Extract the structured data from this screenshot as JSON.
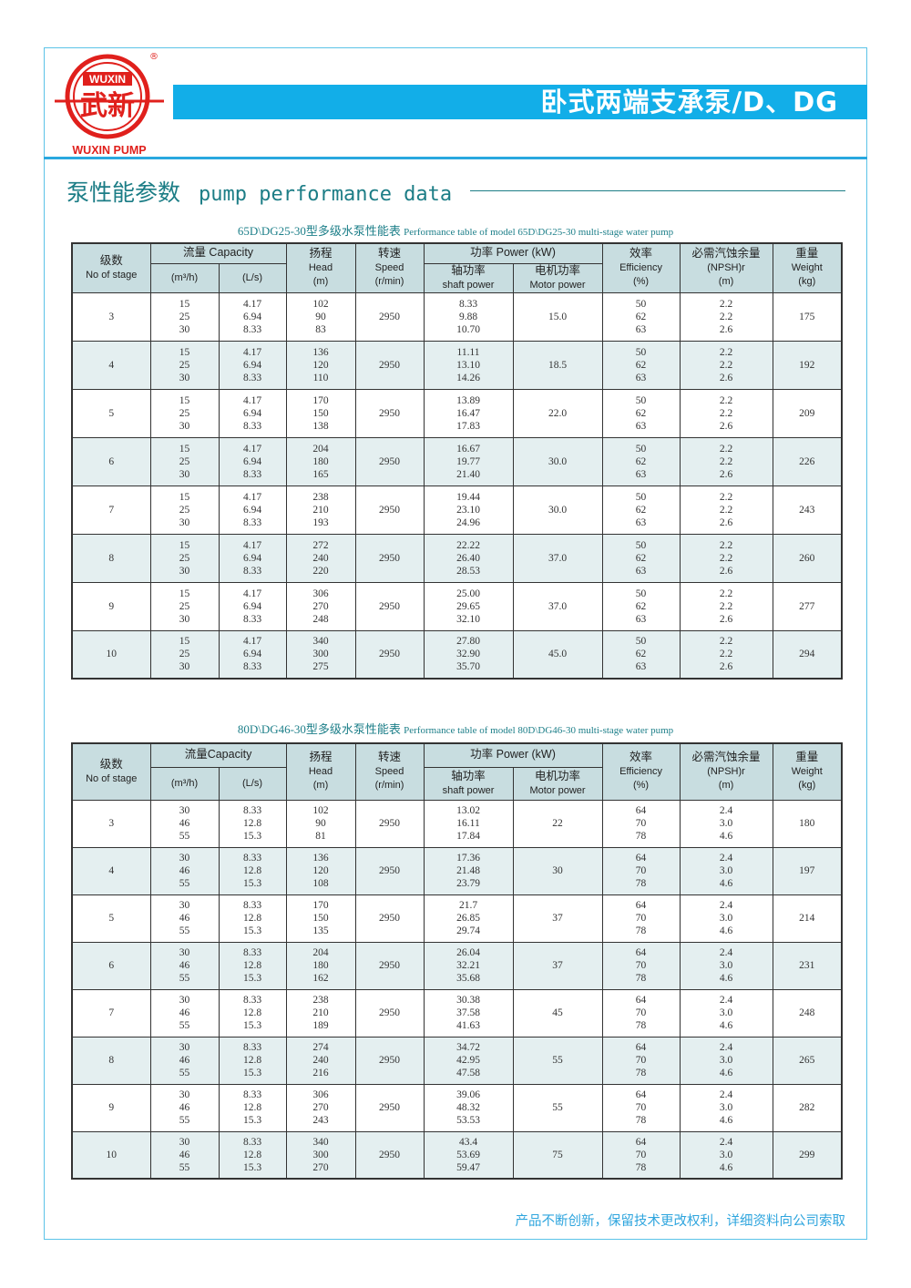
{
  "brand": {
    "logo_top": "WUXIN",
    "logo_chinese": "武新",
    "logo_bottom": "WUXIN PUMP",
    "registered_mark": "®"
  },
  "banner": {
    "title": "卧式两端支承泵/D、DG"
  },
  "section": {
    "title_zh": "泵性能参数",
    "title_en": "pump performance data"
  },
  "colors": {
    "accent": "#12aee8",
    "header_bg": "#c8dde0",
    "alt_row": "#e4eff0",
    "logo_red": "#e0201c",
    "caption": "#1d7f89"
  },
  "headers": {
    "stage_zh": "级数",
    "stage_en": "No of stage",
    "capacity": "流量 Capacity",
    "capacity2": "流量Capacity",
    "m3h": "(m³/h)",
    "ls": "(L/s)",
    "head_zh": "扬程",
    "head_en": "Head",
    "head_unit": "(m)",
    "speed_zh": "转速",
    "speed_en": "Speed",
    "speed_unit": "(r/min)",
    "power": "功率 Power (kW)",
    "shaft_zh": "轴功率",
    "shaft_en": "shaft power",
    "motor_zh": "电机功率",
    "motor_en": "Motor power",
    "eff_zh": "效率",
    "eff_en": "Efficiency",
    "eff_unit": "(%)",
    "npsh_zh": "必需汽蚀余量",
    "npsh_en": "(NPSH)r",
    "npsh_unit": "(m)",
    "weight_zh": "重量",
    "weight_en": "Weight",
    "weight_unit": "(kg)"
  },
  "tables": [
    {
      "caption_zh": "65D\\DG25-30型多级水泵性能表",
      "caption_en": "Performance table of model 65D\\DG25-30 multi-stage water pump",
      "rows": [
        {
          "stage": "3",
          "q": [
            "15",
            "25",
            "30"
          ],
          "ls": [
            "4.17",
            "6.94",
            "8.33"
          ],
          "head": [
            "102",
            "90",
            "83"
          ],
          "speed": "2950",
          "shaft": [
            "8.33",
            "9.88",
            "10.70"
          ],
          "motor": "15.0",
          "eff": [
            "50",
            "62",
            "63"
          ],
          "npsh": [
            "2.2",
            "2.2",
            "2.6"
          ],
          "weight": "175"
        },
        {
          "stage": "4",
          "q": [
            "15",
            "25",
            "30"
          ],
          "ls": [
            "4.17",
            "6.94",
            "8.33"
          ],
          "head": [
            "136",
            "120",
            "110"
          ],
          "speed": "2950",
          "shaft": [
            "11.11",
            "13.10",
            "14.26"
          ],
          "motor": "18.5",
          "eff": [
            "50",
            "62",
            "63"
          ],
          "npsh": [
            "2.2",
            "2.2",
            "2.6"
          ],
          "weight": "192"
        },
        {
          "stage": "5",
          "q": [
            "15",
            "25",
            "30"
          ],
          "ls": [
            "4.17",
            "6.94",
            "8.33"
          ],
          "head": [
            "170",
            "150",
            "138"
          ],
          "speed": "2950",
          "shaft": [
            "13.89",
            "16.47",
            "17.83"
          ],
          "motor": "22.0",
          "eff": [
            "50",
            "62",
            "63"
          ],
          "npsh": [
            "2.2",
            "2.2",
            "2.6"
          ],
          "weight": "209"
        },
        {
          "stage": "6",
          "q": [
            "15",
            "25",
            "30"
          ],
          "ls": [
            "4.17",
            "6.94",
            "8.33"
          ],
          "head": [
            "204",
            "180",
            "165"
          ],
          "speed": "2950",
          "shaft": [
            "16.67",
            "19.77",
            "21.40"
          ],
          "motor": "30.0",
          "eff": [
            "50",
            "62",
            "63"
          ],
          "npsh": [
            "2.2",
            "2.2",
            "2.6"
          ],
          "weight": "226"
        },
        {
          "stage": "7",
          "q": [
            "15",
            "25",
            "30"
          ],
          "ls": [
            "4.17",
            "6.94",
            "8.33"
          ],
          "head": [
            "238",
            "210",
            "193"
          ],
          "speed": "2950",
          "shaft": [
            "19.44",
            "23.10",
            "24.96"
          ],
          "motor": "30.0",
          "eff": [
            "50",
            "62",
            "63"
          ],
          "npsh": [
            "2.2",
            "2.2",
            "2.6"
          ],
          "weight": "243"
        },
        {
          "stage": "8",
          "q": [
            "15",
            "25",
            "30"
          ],
          "ls": [
            "4.17",
            "6.94",
            "8.33"
          ],
          "head": [
            "272",
            "240",
            "220"
          ],
          "speed": "2950",
          "shaft": [
            "22.22",
            "26.40",
            "28.53"
          ],
          "motor": "37.0",
          "eff": [
            "50",
            "62",
            "63"
          ],
          "npsh": [
            "2.2",
            "2.2",
            "2.6"
          ],
          "weight": "260"
        },
        {
          "stage": "9",
          "q": [
            "15",
            "25",
            "30"
          ],
          "ls": [
            "4.17",
            "6.94",
            "8.33"
          ],
          "head": [
            "306",
            "270",
            "248"
          ],
          "speed": "2950",
          "shaft": [
            "25.00",
            "29.65",
            "32.10"
          ],
          "motor": "37.0",
          "eff": [
            "50",
            "62",
            "63"
          ],
          "npsh": [
            "2.2",
            "2.2",
            "2.6"
          ],
          "weight": "277"
        },
        {
          "stage": "10",
          "q": [
            "15",
            "25",
            "30"
          ],
          "ls": [
            "4.17",
            "6.94",
            "8.33"
          ],
          "head": [
            "340",
            "300",
            "275"
          ],
          "speed": "2950",
          "shaft": [
            "27.80",
            "32.90",
            "35.70"
          ],
          "motor": "45.0",
          "eff": [
            "50",
            "62",
            "63"
          ],
          "npsh": [
            "2.2",
            "2.2",
            "2.6"
          ],
          "weight": "294"
        }
      ]
    },
    {
      "caption_zh": "80D\\DG46-30型多级水泵性能表",
      "caption_en": "Performance table of model 80D\\DG46-30 multi-stage water pump",
      "rows": [
        {
          "stage": "3",
          "q": [
            "30",
            "46",
            "55"
          ],
          "ls": [
            "8.33",
            "12.8",
            "15.3"
          ],
          "head": [
            "102",
            "90",
            "81"
          ],
          "speed": "2950",
          "shaft": [
            "13.02",
            "16.11",
            "17.84"
          ],
          "motor": "22",
          "eff": [
            "64",
            "70",
            "78"
          ],
          "npsh": [
            "2.4",
            "3.0",
            "4.6"
          ],
          "weight": "180"
        },
        {
          "stage": "4",
          "q": [
            "30",
            "46",
            "55"
          ],
          "ls": [
            "8.33",
            "12.8",
            "15.3"
          ],
          "head": [
            "136",
            "120",
            "108"
          ],
          "speed": "2950",
          "shaft": [
            "17.36",
            "21.48",
            "23.79"
          ],
          "motor": "30",
          "eff": [
            "64",
            "70",
            "78"
          ],
          "npsh": [
            "2.4",
            "3.0",
            "4.6"
          ],
          "weight": "197"
        },
        {
          "stage": "5",
          "q": [
            "30",
            "46",
            "55"
          ],
          "ls": [
            "8.33",
            "12.8",
            "15.3"
          ],
          "head": [
            "170",
            "150",
            "135"
          ],
          "speed": "2950",
          "shaft": [
            "21.7",
            "26.85",
            "29.74"
          ],
          "motor": "37",
          "eff": [
            "64",
            "70",
            "78"
          ],
          "npsh": [
            "2.4",
            "3.0",
            "4.6"
          ],
          "weight": "214"
        },
        {
          "stage": "6",
          "q": [
            "30",
            "46",
            "55"
          ],
          "ls": [
            "8.33",
            "12.8",
            "15.3"
          ],
          "head": [
            "204",
            "180",
            "162"
          ],
          "speed": "2950",
          "shaft": [
            "26.04",
            "32.21",
            "35.68"
          ],
          "motor": "37",
          "eff": [
            "64",
            "70",
            "78"
          ],
          "npsh": [
            "2.4",
            "3.0",
            "4.6"
          ],
          "weight": "231"
        },
        {
          "stage": "7",
          "q": [
            "30",
            "46",
            "55"
          ],
          "ls": [
            "8.33",
            "12.8",
            "15.3"
          ],
          "head": [
            "238",
            "210",
            "189"
          ],
          "speed": "2950",
          "shaft": [
            "30.38",
            "37.58",
            "41.63"
          ],
          "motor": "45",
          "eff": [
            "64",
            "70",
            "78"
          ],
          "npsh": [
            "2.4",
            "3.0",
            "4.6"
          ],
          "weight": "248"
        },
        {
          "stage": "8",
          "q": [
            "30",
            "46",
            "55"
          ],
          "ls": [
            "8.33",
            "12.8",
            "15.3"
          ],
          "head": [
            "274",
            "240",
            "216"
          ],
          "speed": "2950",
          "shaft": [
            "34.72",
            "42.95",
            "47.58"
          ],
          "motor": "55",
          "eff": [
            "64",
            "70",
            "78"
          ],
          "npsh": [
            "2.4",
            "3.0",
            "4.6"
          ],
          "weight": "265"
        },
        {
          "stage": "9",
          "q": [
            "30",
            "46",
            "55"
          ],
          "ls": [
            "8.33",
            "12.8",
            "15.3"
          ],
          "head": [
            "306",
            "270",
            "243"
          ],
          "speed": "2950",
          "shaft": [
            "39.06",
            "48.32",
            "53.53"
          ],
          "motor": "55",
          "eff": [
            "64",
            "70",
            "78"
          ],
          "npsh": [
            "2.4",
            "3.0",
            "4.6"
          ],
          "weight": "282"
        },
        {
          "stage": "10",
          "q": [
            "30",
            "46",
            "55"
          ],
          "ls": [
            "8.33",
            "12.8",
            "15.3"
          ],
          "head": [
            "340",
            "300",
            "270"
          ],
          "speed": "2950",
          "shaft": [
            "43.4",
            "53.69",
            "59.47"
          ],
          "motor": "75",
          "eff": [
            "64",
            "70",
            "78"
          ],
          "npsh": [
            "2.4",
            "3.0",
            "4.6"
          ],
          "weight": "299"
        }
      ]
    }
  ],
  "footer": {
    "note": "产品不断创新，保留技术更改权利，详细资料向公司索取"
  }
}
